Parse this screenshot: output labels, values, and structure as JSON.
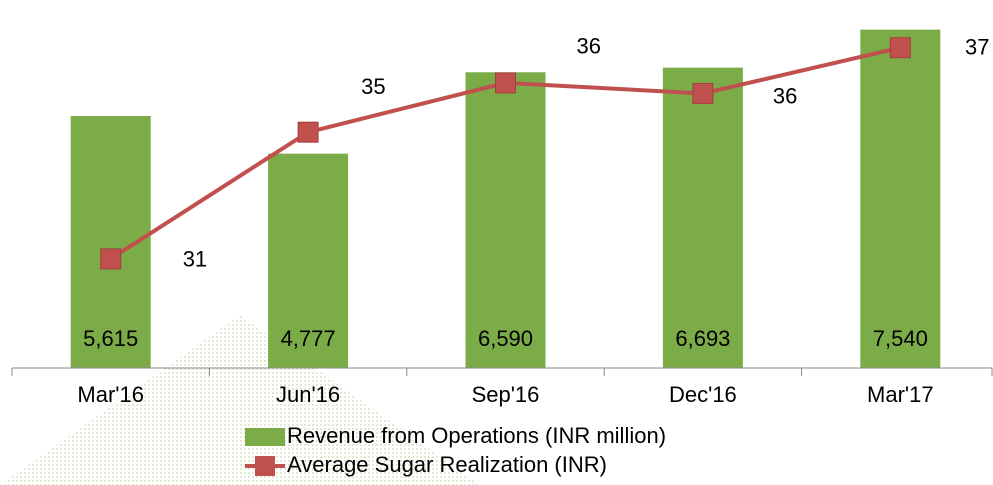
{
  "chart_data": {
    "type": "bar_line",
    "categories": [
      "Mar'16",
      "Jun'16",
      "Sep'16",
      "Dec'16",
      "Mar'17"
    ],
    "series": [
      {
        "name": "Revenue from Operations (INR million)",
        "type": "bar",
        "color": "#7cac48",
        "values": [
          5615,
          4777,
          6590,
          6693,
          7540
        ],
        "value_labels": [
          "5,615",
          "4,777",
          "6,590",
          "6,693",
          "7,540"
        ]
      },
      {
        "name": "Average Sugar Realization (INR)",
        "type": "line",
        "axis": "y2",
        "color": "#c0504d",
        "values": [
          31,
          34.6,
          36,
          35.7,
          37
        ],
        "value_labels": [
          "31",
          "35",
          "36",
          "36",
          "37"
        ]
      }
    ],
    "ylim": [
      0,
      8000
    ],
    "y2lim": [
      27.9,
      38.1
    ],
    "legend": "bottom"
  }
}
